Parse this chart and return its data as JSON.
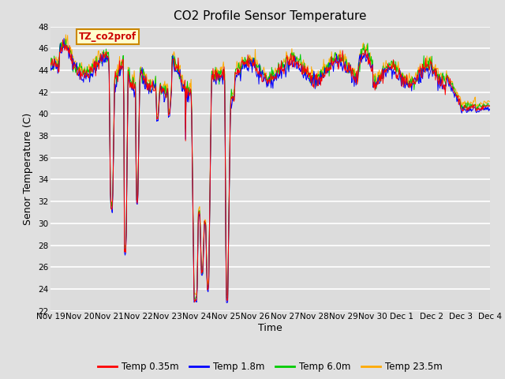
{
  "title": "CO2 Profile Sensor Temperature",
  "ylabel": "Senor Temperature (C)",
  "xlabel": "Time",
  "ylim": [
    22,
    48
  ],
  "fig_bg_color": "#e8e8e8",
  "plot_bg_color": "#e0e0e0",
  "series_labels": [
    "Temp 0.35m",
    "Temp 1.8m",
    "Temp 6.0m",
    "Temp 23.5m"
  ],
  "series_colors": [
    "#ff0000",
    "#0000ff",
    "#00cc00",
    "#ffaa00"
  ],
  "x_tick_labels": [
    "Nov 19",
    "Nov 20",
    "Nov 21",
    "Nov 22",
    "Nov 23",
    "Nov 24",
    "Nov 25",
    "Nov 26",
    "Nov 27",
    "Nov 28",
    "Nov 29",
    "Nov 30",
    "Dec 1",
    "Dec 2",
    "Dec 3",
    "Dec 4"
  ],
  "title_fontsize": 11,
  "axis_fontsize": 9,
  "tick_fontsize": 7.5,
  "legend_label_color": "#cc0000",
  "legend_box_fill": "#ffffcc",
  "legend_box_edge": "#cc8800"
}
